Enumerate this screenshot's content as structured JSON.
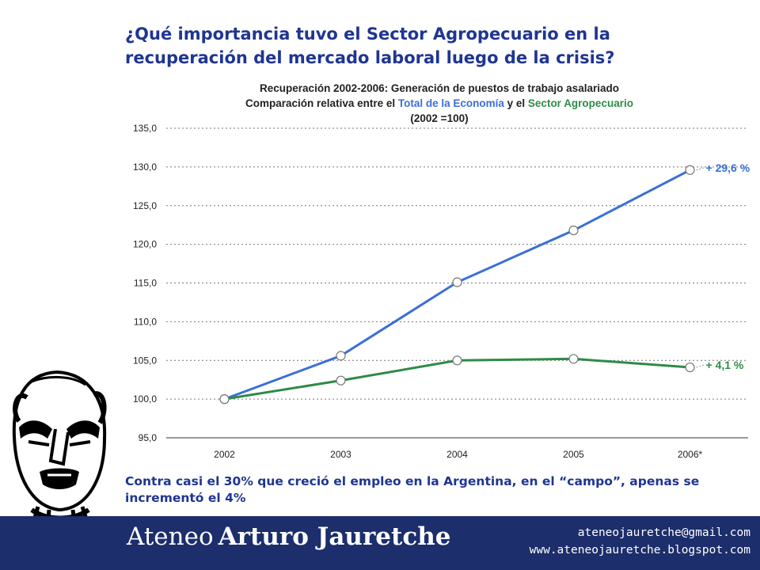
{
  "slide": {
    "title_line1": "¿Qué importancia tuvo el Sector Agropecuario en la",
    "title_line2": "recuperación del mercado laboral luego de la crisis?",
    "caption_line1": "Contra casi el 30% que creció el empleo en la Argentina, en el “campo”, apenas se",
    "caption_line2": "incrementó el 4%"
  },
  "footer": {
    "name_light": "Ateneo",
    "name_bold": "Arturo Jauretche",
    "email": "ateneojauretche@gmail.com",
    "website": "www.ateneojauretche.blogspot.com"
  },
  "chart_data": {
    "type": "line",
    "title": "Recuperación 2002-2006: Generación de puestos de trabajo asalariado",
    "subtitle_prefix": "Comparación relativa entre el ",
    "subtitle_middle": " y el ",
    "subtitle_line2": "(2002 =100)",
    "categories": [
      "2002",
      "2003",
      "2004",
      "2005",
      "2006*"
    ],
    "ylim": [
      95,
      135
    ],
    "yticks": [
      "95,0",
      "100,0",
      "105,0",
      "110,0",
      "115,0",
      "120,0",
      "125,0",
      "130,0",
      "135,0"
    ],
    "grid": true,
    "series": [
      {
        "name": "Total de la Economía",
        "color": "#3a6fd8",
        "values": [
          100.0,
          105.6,
          115.1,
          121.8,
          129.6
        ],
        "end_label": "+ 29,6 %"
      },
      {
        "name": "Sector Agropecuario",
        "color": "#2e8b46",
        "values": [
          100.0,
          102.4,
          105.0,
          105.2,
          104.1
        ],
        "end_label": "+ 4,1 %"
      }
    ]
  }
}
